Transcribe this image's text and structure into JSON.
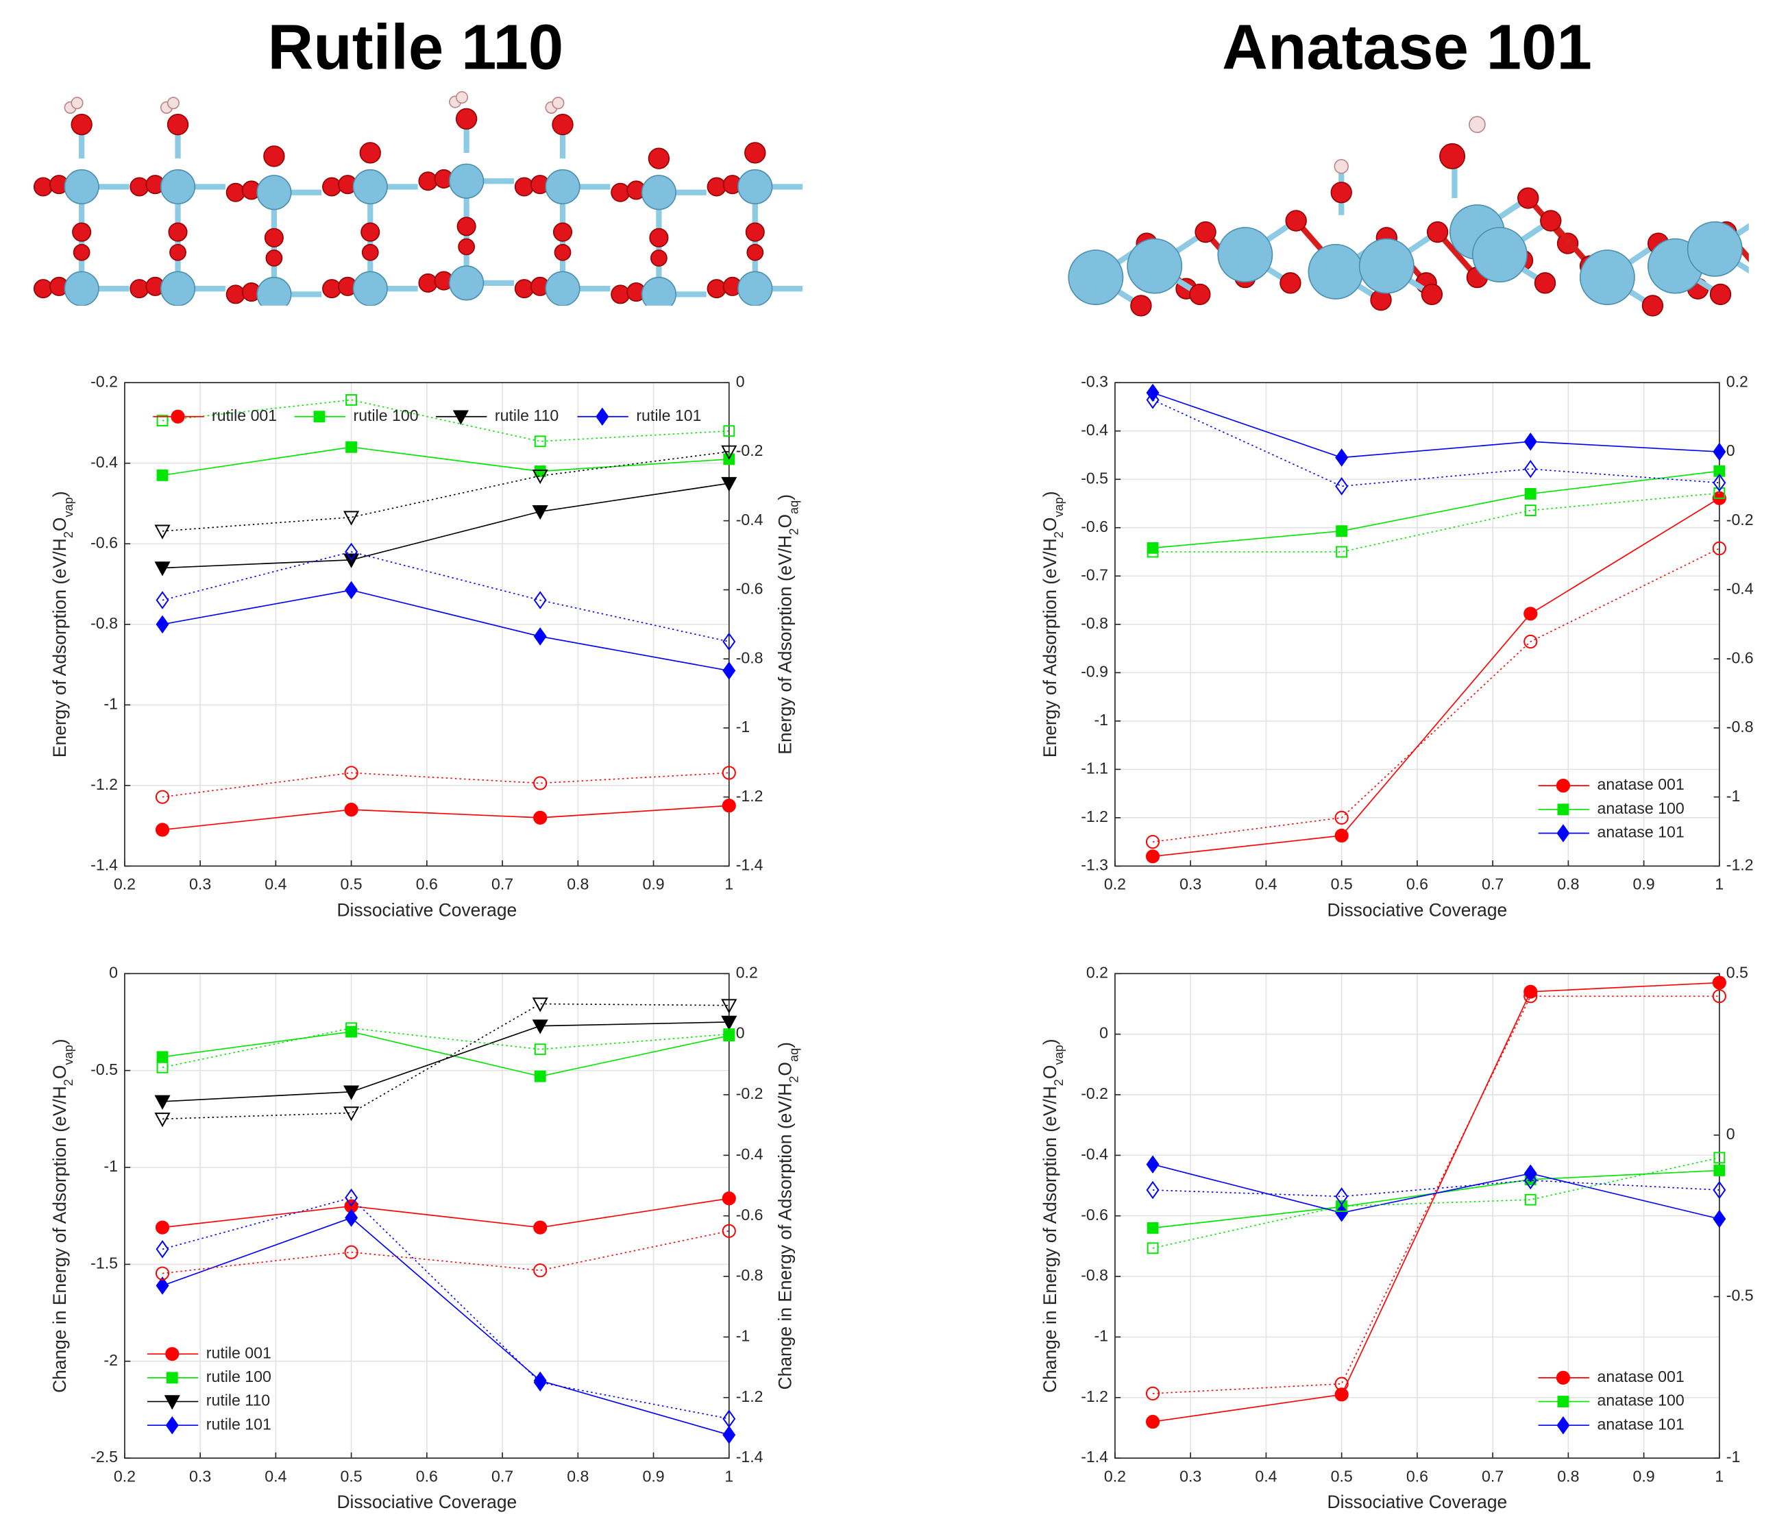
{
  "headings": [
    "Rutile 110",
    "Anatase 101"
  ],
  "chart_data": [
    {
      "type": "line",
      "xlabel": "Dissociative Coverage",
      "ylabel": [
        "Energy of Adsorption (eV/H",
        "2",
        "O",
        "vap",
        ")"
      ],
      "y2label": [
        "Energy of Adsorption (eV/H",
        "2",
        "O",
        "aq",
        ")"
      ],
      "x": [
        0.25,
        0.5,
        0.75,
        1
      ],
      "xlim": [
        0.2,
        1
      ],
      "xticks": [
        0.2,
        0.3,
        0.4,
        0.5,
        0.6,
        0.7,
        0.8,
        0.9,
        1
      ],
      "ylim": [
        -1.4,
        -0.2
      ],
      "yticks": [
        -1.4,
        -1.2,
        -1,
        -0.8,
        -0.6,
        -0.4,
        -0.2
      ],
      "y2lim": [
        -1.4,
        0
      ],
      "y2ticks": [
        -1.4,
        -1.2,
        -1,
        -0.8,
        -0.6,
        -0.4,
        -0.2,
        0
      ],
      "grid": true,
      "legend": "top",
      "series": [
        {
          "name": "rutile 001",
          "color": "#ff0000",
          "marker": "o",
          "filled": true,
          "linestyle": "solid",
          "values": [
            -1.31,
            -1.26,
            -1.28,
            -1.25
          ]
        },
        {
          "name": "rutile 100",
          "color": "#00e600",
          "marker": "s",
          "filled": true,
          "linestyle": "solid",
          "values": [
            -0.43,
            -0.36,
            -0.42,
            -0.39
          ]
        },
        {
          "name": "rutile 110",
          "color": "#000000",
          "marker": "v",
          "filled": true,
          "linestyle": "solid",
          "values": [
            -0.66,
            -0.64,
            -0.52,
            -0.45
          ]
        },
        {
          "name": "rutile 101",
          "color": "#0000ff",
          "marker": "d",
          "filled": true,
          "linestyle": "solid",
          "values": [
            -0.8,
            -0.715,
            -0.83,
            -0.915
          ]
        },
        {
          "color": "#ff0000",
          "marker": "o",
          "filled": false,
          "linestyle": "dotted",
          "axis": "y2",
          "values": [
            -1.2,
            -1.13,
            -1.16,
            -1.13
          ]
        },
        {
          "color": "#00e600",
          "marker": "s",
          "filled": false,
          "linestyle": "dotted",
          "axis": "y2",
          "values": [
            -0.11,
            -0.05,
            -0.17,
            -0.14
          ]
        },
        {
          "color": "#000000",
          "marker": "v",
          "filled": false,
          "linestyle": "dotted",
          "axis": "y2",
          "values": [
            -0.43,
            -0.39,
            -0.27,
            -0.2
          ]
        },
        {
          "color": "#0000ff",
          "marker": "d",
          "filled": false,
          "linestyle": "dotted",
          "axis": "y2",
          "values": [
            -0.63,
            -0.49,
            -0.63,
            -0.75
          ]
        }
      ]
    },
    {
      "type": "line",
      "xlabel": "Dissociative Coverage",
      "ylabel": [
        "Energy of Adsorption (eV/H",
        "2",
        "O",
        "vap",
        ")"
      ],
      "x": [
        0.25,
        0.5,
        0.75,
        1
      ],
      "xlim": [
        0.2,
        1
      ],
      "xticks": [
        0.2,
        0.3,
        0.4,
        0.5,
        0.6,
        0.7,
        0.8,
        0.9,
        1
      ],
      "ylim": [
        -1.3,
        -0.3
      ],
      "yticks": [
        -1.3,
        -1.2,
        -1.1,
        -1,
        -0.9,
        -0.8,
        -0.7,
        -0.6,
        -0.5,
        -0.4,
        -0.3
      ],
      "y2lim": [
        -1.2,
        0.2
      ],
      "y2ticks": [
        -1.2,
        -1,
        -0.8,
        -0.6,
        -0.4,
        -0.2,
        0,
        0.2
      ],
      "grid": true,
      "legend": "lower right",
      "series": [
        {
          "name": "anatase 001",
          "color": "#ff0000",
          "marker": "o",
          "filled": true,
          "linestyle": "solid",
          "values": [
            -1.28,
            -1.237,
            -0.778,
            -0.539
          ]
        },
        {
          "name": "anatase 100",
          "color": "#00e600",
          "marker": "s",
          "filled": true,
          "linestyle": "solid",
          "values": [
            -0.642,
            -0.607,
            -0.53,
            -0.483
          ]
        },
        {
          "name": "anatase 101",
          "color": "#0000ff",
          "marker": "d",
          "filled": true,
          "linestyle": "solid",
          "values": [
            -0.321,
            -0.455,
            -0.422,
            -0.443
          ]
        },
        {
          "color": "#ff0000",
          "marker": "o",
          "filled": false,
          "linestyle": "dotted",
          "axis": "y2",
          "values": [
            -1.13,
            -1.06,
            -0.55,
            -0.28
          ]
        },
        {
          "color": "#00e600",
          "marker": "s",
          "filled": false,
          "linestyle": "dotted",
          "axis": "y2",
          "values": [
            -0.29,
            -0.29,
            -0.17,
            -0.12
          ]
        },
        {
          "color": "#0000ff",
          "marker": "d",
          "filled": false,
          "linestyle": "dotted",
          "axis": "y2",
          "values": [
            0.15,
            -0.1,
            -0.05,
            -0.09
          ]
        }
      ]
    },
    {
      "type": "line",
      "xlabel": "Dissociative Coverage",
      "ylabel": [
        "Change in Energy of Adsorption (eV/H",
        "2",
        "O",
        "vap",
        ")"
      ],
      "y2label": [
        "Change in Energy of Adsorption (eV/H",
        "2",
        "O",
        "aq",
        ")"
      ],
      "x": [
        0.25,
        0.5,
        0.75,
        1
      ],
      "xlim": [
        0.2,
        1
      ],
      "xticks": [
        0.2,
        0.3,
        0.4,
        0.5,
        0.6,
        0.7,
        0.8,
        0.9,
        1
      ],
      "ylim": [
        -2.5,
        0
      ],
      "yticks": [
        -2.5,
        -2,
        -1.5,
        -1,
        -0.5,
        0
      ],
      "y2lim": [
        -1.4,
        0.2
      ],
      "y2ticks": [
        -1.4,
        -1.2,
        -1,
        -0.8,
        -0.6,
        -0.4,
        -0.2,
        0,
        0.2
      ],
      "grid": true,
      "legend": "lower left",
      "series": [
        {
          "name": "rutile 001",
          "color": "#ff0000",
          "marker": "o",
          "filled": true,
          "linestyle": "solid",
          "values": [
            -1.31,
            -1.2,
            -1.31,
            -1.16
          ]
        },
        {
          "name": "rutile 100",
          "color": "#00e600",
          "marker": "s",
          "filled": true,
          "linestyle": "solid",
          "values": [
            -0.43,
            -0.3,
            -0.53,
            -0.32
          ]
        },
        {
          "name": "rutile 110",
          "color": "#000000",
          "marker": "v",
          "filled": true,
          "linestyle": "solid",
          "values": [
            -0.66,
            -0.61,
            -0.27,
            -0.25
          ]
        },
        {
          "name": "rutile 101",
          "color": "#0000ff",
          "marker": "d",
          "filled": true,
          "linestyle": "solid",
          "values": [
            -1.61,
            -1.26,
            -2.1,
            -2.38
          ]
        },
        {
          "color": "#ff0000",
          "marker": "o",
          "filled": false,
          "linestyle": "dotted",
          "axis": "y2",
          "values": [
            -0.79,
            -0.72,
            -0.78,
            -0.65
          ]
        },
        {
          "color": "#00e600",
          "marker": "s",
          "filled": false,
          "linestyle": "dotted",
          "axis": "y2",
          "values": [
            -0.11,
            0.02,
            -0.05,
            0
          ]
        },
        {
          "color": "#000000",
          "marker": "v",
          "filled": false,
          "linestyle": "dotted",
          "axis": "y2",
          "values": [
            -0.28,
            -0.26,
            0.1,
            0.095
          ]
        },
        {
          "color": "#0000ff",
          "marker": "d",
          "filled": false,
          "linestyle": "dotted",
          "axis": "y2",
          "values": [
            -0.71,
            -0.54,
            -1.15,
            -1.27
          ]
        }
      ]
    },
    {
      "type": "line",
      "xlabel": "Dissociative Coverage",
      "ylabel": [
        "Change in Energy of Adsorption (eV/H",
        "2",
        "O",
        "vap",
        ")"
      ],
      "x": [
        0.25,
        0.5,
        0.75,
        1
      ],
      "xlim": [
        0.2,
        1
      ],
      "xticks": [
        0.2,
        0.3,
        0.4,
        0.5,
        0.6,
        0.7,
        0.8,
        0.9,
        1
      ],
      "ylim": [
        -1.4,
        0.2
      ],
      "yticks": [
        -1.4,
        -1.2,
        -1,
        -0.8,
        -0.6,
        -0.4,
        -0.2,
        0,
        0.2
      ],
      "y2lim": [
        -1,
        0.5
      ],
      "y2ticks": [
        -1,
        -0.5,
        0,
        0.5
      ],
      "grid": true,
      "legend": "lower right",
      "series": [
        {
          "name": "anatase 001",
          "color": "#ff0000",
          "marker": "o",
          "filled": true,
          "linestyle": "solid",
          "values": [
            -1.28,
            -1.19,
            0.14,
            0.17
          ]
        },
        {
          "name": "anatase 100",
          "color": "#00e600",
          "marker": "s",
          "filled": true,
          "linestyle": "solid",
          "values": [
            -0.64,
            -0.57,
            -0.48,
            -0.45
          ]
        },
        {
          "name": "anatase 101",
          "color": "#0000ff",
          "marker": "d",
          "filled": true,
          "linestyle": "solid",
          "values": [
            -0.43,
            -0.59,
            -0.46,
            -0.61
          ]
        },
        {
          "color": "#ff0000",
          "marker": "o",
          "filled": false,
          "linestyle": "dotted",
          "axis": "y2",
          "values": [
            -0.8,
            -0.77,
            0.43,
            0.43
          ]
        },
        {
          "color": "#00e600",
          "marker": "s",
          "filled": false,
          "linestyle": "dotted",
          "axis": "y2",
          "values": [
            -0.35,
            -0.22,
            -0.2,
            -0.07
          ]
        },
        {
          "color": "#0000ff",
          "marker": "d",
          "filled": false,
          "linestyle": "dotted",
          "axis": "y2",
          "values": [
            -0.17,
            -0.19,
            -0.14,
            -0.17
          ]
        }
      ]
    }
  ]
}
